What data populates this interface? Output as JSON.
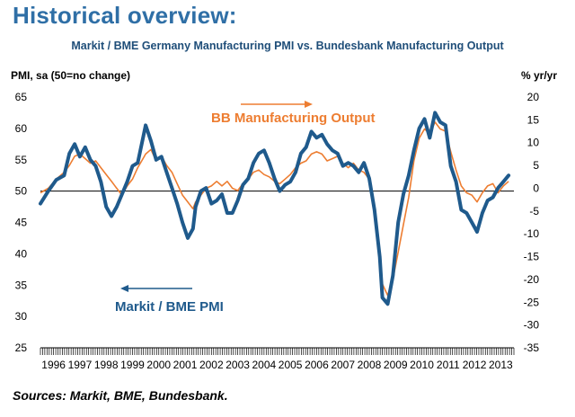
{
  "header": {
    "title": "Historical overview:",
    "chart_title": "Markit / BME Germany Manufacturing PMI vs. Bundesbank Manufacturing Output",
    "left_axis_label": "PMI, sa (50=no change)",
    "right_axis_label": "% yr/yr"
  },
  "footer": {
    "source": "Sources: Markit, BME, Bundesbank."
  },
  "colors": {
    "pmi": "#1f5a8c",
    "output": "#ed7d31",
    "title": "#2f6fa6",
    "reference_line": "#000000"
  },
  "chart_data": {
    "type": "line",
    "title": "Markit / BME Germany Manufacturing PMI vs. Bundesbank Manufacturing Output",
    "xlabel": "",
    "ylabel": "PMI, sa (50=no change)",
    "y2label": "% yr/yr",
    "ylim": [
      25,
      65
    ],
    "y_ticks": [
      25,
      30,
      35,
      40,
      45,
      50,
      55,
      60,
      65
    ],
    "y2lim": [
      -35,
      20
    ],
    "y2_ticks": [
      -35,
      -30,
      -25,
      -20,
      -15,
      -10,
      -5,
      0,
      5,
      10,
      15,
      20
    ],
    "xlim": [
      1996,
      2014
    ],
    "x_tick_labels": [
      "1996",
      "1997",
      "1998",
      "1999",
      "2000",
      "2001",
      "2002",
      "2003",
      "2004",
      "2005",
      "2006",
      "2007",
      "2008",
      "2009",
      "2010",
      "2011",
      "2012",
      "2013"
    ],
    "reference_line": 50,
    "series": [
      {
        "name": "Markit / BME PMI",
        "axis": "left",
        "x": [
          1996.0,
          1996.3,
          1996.6,
          1996.9,
          1997.1,
          1997.3,
          1997.5,
          1997.7,
          1997.9,
          1998.1,
          1998.3,
          1998.5,
          1998.7,
          1998.9,
          1999.1,
          1999.3,
          1999.5,
          1999.7,
          1999.9,
          2000.0,
          2000.2,
          2000.4,
          2000.6,
          2000.8,
          2001.0,
          2001.2,
          2001.4,
          2001.6,
          2001.8,
          2001.9,
          2002.1,
          2002.3,
          2002.5,
          2002.7,
          2002.9,
          2003.1,
          2003.3,
          2003.5,
          2003.7,
          2003.9,
          2004.1,
          2004.3,
          2004.5,
          2004.7,
          2004.9,
          2005.1,
          2005.3,
          2005.5,
          2005.7,
          2005.9,
          2006.1,
          2006.3,
          2006.5,
          2006.7,
          2006.9,
          2007.1,
          2007.3,
          2007.5,
          2007.7,
          2007.9,
          2008.1,
          2008.3,
          2008.5,
          2008.7,
          2008.9,
          2009.0,
          2009.2,
          2009.4,
          2009.6,
          2009.8,
          2010.0,
          2010.2,
          2010.4,
          2010.6,
          2010.8,
          2011.0,
          2011.2,
          2011.4,
          2011.6,
          2011.8,
          2012.0,
          2012.2,
          2012.4,
          2012.6,
          2012.8,
          2013.0,
          2013.2,
          2013.4,
          2013.6,
          2013.8
        ],
        "values": [
          48.0,
          50.0,
          51.8,
          52.5,
          56.0,
          57.5,
          55.5,
          57.0,
          55.0,
          54.0,
          51.5,
          47.5,
          46.0,
          47.5,
          49.5,
          51.5,
          54.0,
          54.5,
          58.5,
          60.5,
          58.0,
          55.0,
          55.5,
          53.0,
          50.5,
          48.0,
          45.0,
          42.5,
          44.0,
          47.5,
          50.0,
          50.5,
          48.0,
          48.5,
          49.5,
          46.5,
          46.5,
          48.5,
          51.0,
          52.0,
          54.5,
          56.0,
          56.5,
          54.5,
          52.0,
          50.0,
          51.0,
          51.5,
          53.0,
          56.0,
          57.0,
          59.5,
          58.5,
          59.0,
          57.5,
          56.5,
          56.0,
          54.0,
          54.5,
          54.0,
          53.0,
          54.5,
          52.0,
          47.0,
          39.5,
          33.0,
          32.0,
          36.5,
          45.0,
          49.5,
          52.5,
          56.5,
          60.0,
          61.5,
          58.5,
          62.5,
          61.0,
          60.5,
          54.0,
          51.5,
          47.0,
          46.5,
          45.0,
          43.5,
          46.5,
          48.5,
          49.0,
          50.5,
          51.5,
          52.5
        ]
      },
      {
        "name": "BB Manufacturing Output",
        "axis": "right",
        "x": [
          1996.0,
          1996.3,
          1996.6,
          1996.9,
          1997.1,
          1997.3,
          1997.5,
          1997.7,
          1997.9,
          1998.1,
          1998.3,
          1998.5,
          1998.7,
          1998.9,
          1999.1,
          1999.3,
          1999.5,
          1999.7,
          1999.9,
          2000.0,
          2000.2,
          2000.4,
          2000.6,
          2000.8,
          2001.0,
          2001.2,
          2001.4,
          2001.6,
          2001.8,
          2001.9,
          2002.1,
          2002.3,
          2002.5,
          2002.7,
          2002.9,
          2003.1,
          2003.3,
          2003.5,
          2003.7,
          2003.9,
          2004.1,
          2004.3,
          2004.5,
          2004.7,
          2004.9,
          2005.1,
          2005.3,
          2005.5,
          2005.7,
          2005.9,
          2006.1,
          2006.3,
          2006.5,
          2006.7,
          2006.9,
          2007.1,
          2007.3,
          2007.5,
          2007.7,
          2007.9,
          2008.1,
          2008.3,
          2008.5,
          2008.7,
          2008.9,
          2009.0,
          2009.2,
          2009.4,
          2009.6,
          2009.8,
          2010.0,
          2010.2,
          2010.4,
          2010.6,
          2010.8,
          2011.0,
          2011.2,
          2011.4,
          2011.6,
          2011.8,
          2012.0,
          2012.2,
          2012.4,
          2012.6,
          2012.8,
          2013.0,
          2013.2,
          2013.4,
          2013.6,
          2013.8
        ],
        "values": [
          -1.0,
          0.0,
          2.0,
          3.5,
          5.0,
          7.0,
          7.5,
          6.5,
          5.5,
          6.0,
          4.5,
          3.0,
          1.5,
          0.0,
          -1.5,
          0.5,
          2.0,
          4.5,
          6.5,
          7.5,
          8.5,
          6.0,
          7.0,
          5.0,
          3.5,
          1.0,
          -1.5,
          -3.0,
          -4.5,
          -3.0,
          -1.5,
          0.0,
          0.5,
          1.5,
          0.5,
          1.5,
          0.0,
          -0.5,
          1.0,
          2.0,
          3.5,
          4.0,
          3.0,
          2.5,
          1.5,
          1.0,
          2.0,
          3.0,
          4.5,
          5.5,
          6.0,
          7.5,
          8.0,
          7.5,
          6.0,
          6.5,
          7.0,
          5.5,
          4.5,
          5.5,
          4.0,
          3.5,
          2.0,
          -5.0,
          -16.0,
          -21.0,
          -23.5,
          -20.0,
          -14.0,
          -8.0,
          -2.0,
          6.0,
          11.0,
          13.0,
          12.0,
          14.5,
          13.0,
          12.5,
          8.0,
          4.0,
          0.5,
          -1.0,
          -1.5,
          -3.0,
          -1.0,
          0.5,
          1.0,
          -1.0,
          0.5,
          1.5
        ]
      }
    ],
    "annotations": [
      {
        "text": "BB Manufacturing Output",
        "series": "BB Manufacturing Output",
        "arrow": "right"
      },
      {
        "text": "Markit / BME PMI",
        "series": "Markit / BME PMI",
        "arrow": "left"
      }
    ]
  }
}
